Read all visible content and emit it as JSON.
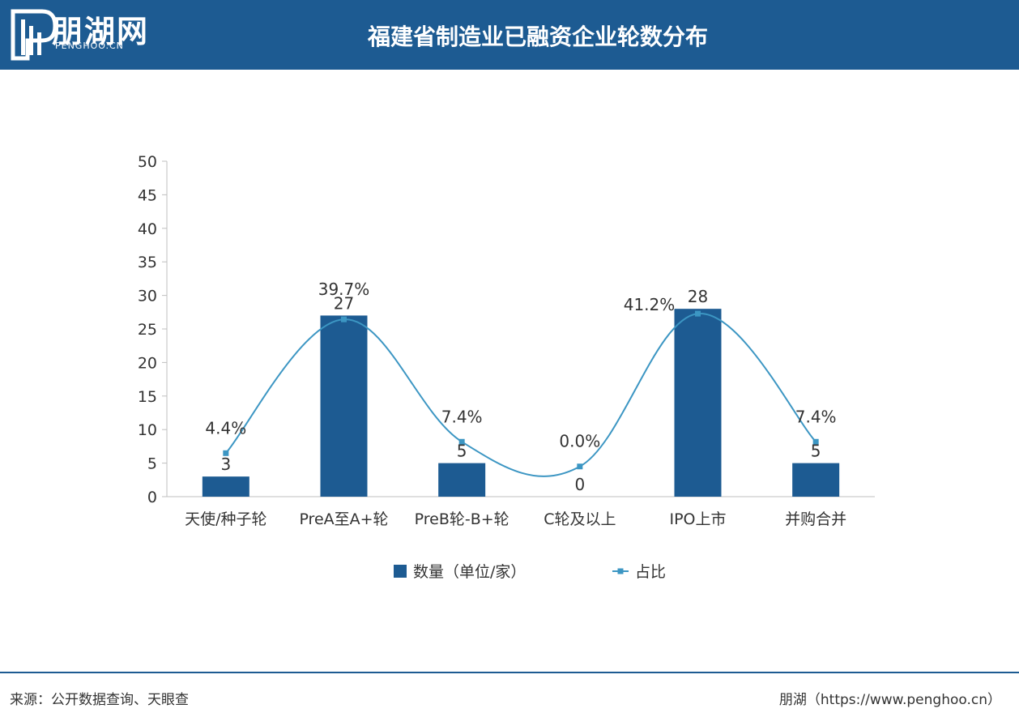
{
  "header": {
    "logo_name": "朋湖网",
    "logo_sub": "PENGHOO.CN",
    "title": "福建省制造业已融资企业轮数分布"
  },
  "footer": {
    "source": "来源：公开数据查询、天眼查",
    "credit": "朋湖（https://www.penghoo.cn）"
  },
  "colors": {
    "header_bg": "#1d5b92",
    "bar": "#1d5b92",
    "line": "#3c96c3"
  },
  "chart_data": {
    "type": "bar",
    "categories": [
      "天使/种子轮",
      "PreA至A+轮",
      "PreB轮-B+轮",
      "C轮及以上",
      "IPO上市",
      "并购合并"
    ],
    "series": [
      {
        "name": "数量（单位/家）",
        "type": "bar",
        "values": [
          3,
          27,
          5,
          0,
          28,
          5
        ],
        "labels": [
          "3",
          "27",
          "5",
          "0",
          "28",
          "5"
        ]
      },
      {
        "name": "占比",
        "type": "line",
        "values": [
          4.4,
          39.7,
          7.4,
          0.0,
          41.2,
          7.4
        ],
        "labels": [
          "4.4%",
          "39.7%",
          "7.4%",
          "0.0%",
          "41.2%",
          "7.4%"
        ]
      }
    ],
    "ylim": [
      0,
      50
    ],
    "yticks": [
      "0",
      "5",
      "10",
      "15",
      "20",
      "25",
      "30",
      "35",
      "40",
      "45",
      "50"
    ],
    "legend_position": "bottom",
    "grid": false
  }
}
